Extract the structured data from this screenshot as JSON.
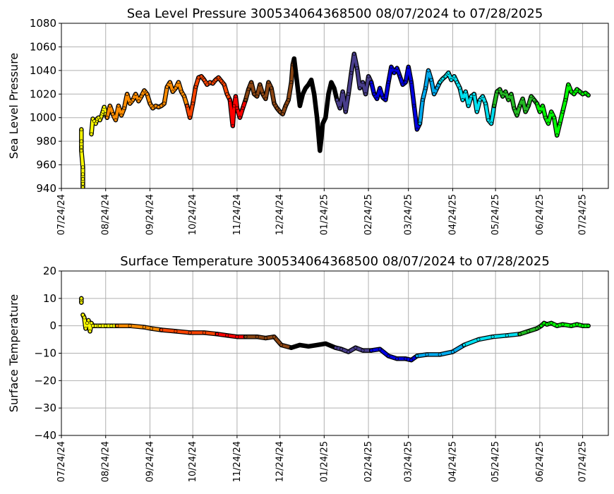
{
  "chart_data": [
    {
      "type": "scatter",
      "title": "Sea Level Pressure 300534064368500  08/07/2024 to 07/28/2025",
      "xlabel": "",
      "ylabel": "Sea Level Pressure",
      "ylim": [
        940,
        1080
      ],
      "yticks": [
        940,
        960,
        980,
        1000,
        1020,
        1040,
        1060,
        1080
      ],
      "xlim": [
        "2024-07-24",
        "2025-08-11"
      ],
      "xticks": [
        "07/24/24",
        "08/24/24",
        "09/24/24",
        "10/24/24",
        "11/24/24",
        "12/24/24",
        "01/24/25",
        "02/24/25",
        "03/24/25",
        "04/24/25",
        "05/24/25",
        "06/24/25",
        "07/24/25"
      ],
      "grid": true,
      "legend": "none",
      "series": [
        {
          "color": "#ffff00",
          "x": [
            "2024-08-07",
            "2024-08-07",
            "2024-08-07",
            "2024-08-07",
            "2024-08-08",
            "2024-08-08",
            "2024-08-08",
            "2024-08-08",
            "2024-08-08"
          ],
          "y": [
            990,
            980,
            975,
            972,
            958,
            952,
            948,
            944,
            941
          ]
        },
        {
          "color": "#ffff00",
          "x": [
            "2024-08-14",
            "2024-08-15",
            "2024-08-16",
            "2024-08-17",
            "2024-08-18",
            "2024-08-19",
            "2024-08-20",
            "2024-08-21",
            "2024-08-22",
            "2024-08-23",
            "2024-08-24",
            "2024-08-25"
          ],
          "y": [
            986,
            999,
            997,
            995,
            999,
            1000,
            998,
            1001,
            1005,
            1009,
            1003,
            1000
          ]
        },
        {
          "color": "#ff8c00",
          "x": [
            "2024-08-25",
            "2024-08-27",
            "2024-08-29",
            "2024-08-31",
            "2024-09-02",
            "2024-09-04",
            "2024-09-06",
            "2024-09-08",
            "2024-09-10",
            "2024-09-12",
            "2024-09-14",
            "2024-09-16",
            "2024-09-18",
            "2024-09-20",
            "2024-09-22",
            "2024-09-24",
            "2024-09-26",
            "2024-09-28",
            "2024-09-30",
            "2024-10-02",
            "2024-10-04",
            "2024-10-06",
            "2024-10-08",
            "2024-10-10",
            "2024-10-12",
            "2024-10-14",
            "2024-10-16",
            "2024-10-18",
            "2024-10-20"
          ],
          "y": [
            1000,
            1010,
            1003,
            998,
            1010,
            1002,
            1008,
            1020,
            1012,
            1015,
            1020,
            1014,
            1018,
            1023,
            1020,
            1012,
            1008,
            1010,
            1009,
            1010,
            1012,
            1026,
            1030,
            1022,
            1025,
            1030,
            1022,
            1018,
            1010
          ]
        },
        {
          "color": "#ff4500",
          "x": [
            "2024-10-20",
            "2024-10-22",
            "2024-10-24",
            "2024-10-26",
            "2024-10-28",
            "2024-10-30",
            "2024-11-01",
            "2024-11-03",
            "2024-11-05",
            "2024-11-07",
            "2024-11-09",
            "2024-11-11",
            "2024-11-13",
            "2024-11-15",
            "2024-11-17",
            "2024-11-19"
          ],
          "y": [
            1010,
            1000,
            1012,
            1026,
            1034,
            1035,
            1032,
            1028,
            1030,
            1029,
            1032,
            1034,
            1031,
            1028,
            1020,
            1015
          ]
        },
        {
          "color": "#ff0000",
          "x": [
            "2024-11-19",
            "2024-11-21",
            "2024-11-22",
            "2024-11-23",
            "2024-11-24",
            "2024-11-26",
            "2024-11-28",
            "2024-11-30"
          ],
          "y": [
            1015,
            993,
            1010,
            1018,
            1008,
            1000,
            1008,
            1015
          ]
        },
        {
          "color": "#8b4513",
          "x": [
            "2024-11-30",
            "2024-12-02",
            "2024-12-04",
            "2024-12-06",
            "2024-12-08",
            "2024-12-10",
            "2024-12-12",
            "2024-12-14",
            "2024-12-16",
            "2024-12-18",
            "2024-12-20",
            "2024-12-22",
            "2024-12-24",
            "2024-12-26",
            "2024-12-28",
            "2024-12-30",
            "2025-01-01",
            "2025-01-02",
            "2025-01-03"
          ],
          "y": [
            1015,
            1024,
            1030,
            1020,
            1018,
            1028,
            1020,
            1016,
            1030,
            1025,
            1012,
            1008,
            1005,
            1003,
            1010,
            1015,
            1030,
            1045,
            1050
          ]
        },
        {
          "color": "#000000",
          "x": [
            "2025-01-03",
            "2025-01-05",
            "2025-01-07",
            "2025-01-09",
            "2025-01-11",
            "2025-01-13",
            "2025-01-15",
            "2025-01-17",
            "2025-01-19",
            "2025-01-21",
            "2025-01-22",
            "2025-01-23",
            "2025-01-25",
            "2025-01-27",
            "2025-01-29",
            "2025-01-31",
            "2025-02-02"
          ],
          "y": [
            1050,
            1030,
            1010,
            1020,
            1025,
            1028,
            1032,
            1020,
            1000,
            972,
            982,
            995,
            1000,
            1020,
            1030,
            1025,
            1015
          ]
        },
        {
          "color": "#483d8b",
          "x": [
            "2025-02-02",
            "2025-02-04",
            "2025-02-06",
            "2025-02-08",
            "2025-02-10",
            "2025-02-12",
            "2025-02-14",
            "2025-02-16",
            "2025-02-18",
            "2025-02-20",
            "2025-02-22",
            "2025-02-24",
            "2025-02-26"
          ],
          "y": [
            1015,
            1008,
            1022,
            1005,
            1020,
            1038,
            1054,
            1042,
            1025,
            1030,
            1020,
            1035,
            1030
          ]
        },
        {
          "color": "#0000e0",
          "x": [
            "2025-02-26",
            "2025-02-28",
            "2025-03-02",
            "2025-03-04",
            "2025-03-06",
            "2025-03-08",
            "2025-03-10",
            "2025-03-12",
            "2025-03-14",
            "2025-03-16",
            "2025-03-18",
            "2025-03-20",
            "2025-03-22",
            "2025-03-24",
            "2025-03-26",
            "2025-03-28",
            "2025-03-30",
            "2025-04-01"
          ],
          "y": [
            1030,
            1020,
            1016,
            1025,
            1017,
            1015,
            1030,
            1043,
            1038,
            1042,
            1035,
            1028,
            1030,
            1043,
            1030,
            1010,
            990,
            995
          ]
        },
        {
          "color": "#00aaee",
          "x": [
            "2025-04-01",
            "2025-04-03",
            "2025-04-05",
            "2025-04-07",
            "2025-04-09",
            "2025-04-11",
            "2025-04-13",
            "2025-04-15"
          ],
          "y": [
            995,
            1015,
            1025,
            1040,
            1032,
            1020,
            1025,
            1030
          ]
        },
        {
          "color": "#00e0f0",
          "x": [
            "2025-04-15",
            "2025-04-17",
            "2025-04-19",
            "2025-04-21",
            "2025-04-23",
            "2025-04-25",
            "2025-04-27",
            "2025-04-29",
            "2025-05-01",
            "2025-05-03",
            "2025-05-05",
            "2025-05-07",
            "2025-05-09",
            "2025-05-11",
            "2025-05-13",
            "2025-05-15",
            "2025-05-17",
            "2025-05-19",
            "2025-05-21",
            "2025-05-23"
          ],
          "y": [
            1030,
            1033,
            1035,
            1038,
            1032,
            1035,
            1030,
            1025,
            1015,
            1022,
            1010,
            1018,
            1020,
            1005,
            1015,
            1018,
            1012,
            998,
            995,
            1010
          ]
        },
        {
          "color": "#22bb22",
          "x": [
            "2025-05-23",
            "2025-05-25",
            "2025-05-27",
            "2025-05-29",
            "2025-05-31",
            "2025-06-02",
            "2025-06-04",
            "2025-06-06",
            "2025-06-08",
            "2025-06-10",
            "2025-06-12",
            "2025-06-14",
            "2025-06-16",
            "2025-06-18",
            "2025-06-20",
            "2025-06-22"
          ],
          "y": [
            1010,
            1022,
            1024,
            1018,
            1022,
            1015,
            1020,
            1008,
            1002,
            1010,
            1016,
            1005,
            1010,
            1018,
            1015,
            1012
          ]
        },
        {
          "color": "#00ff00",
          "x": [
            "2025-06-22",
            "2025-06-24",
            "2025-06-26",
            "2025-06-28",
            "2025-06-30",
            "2025-07-02",
            "2025-07-04",
            "2025-07-06",
            "2025-07-08",
            "2025-07-10",
            "2025-07-12",
            "2025-07-14",
            "2025-07-16",
            "2025-07-18",
            "2025-07-20",
            "2025-07-22",
            "2025-07-24",
            "2025-07-26",
            "2025-07-28"
          ],
          "y": [
            1012,
            1005,
            1010,
            1000,
            995,
            1005,
            1000,
            985,
            995,
            1005,
            1015,
            1028,
            1022,
            1020,
            1024,
            1022,
            1020,
            1021,
            1019
          ]
        }
      ]
    },
    {
      "type": "scatter",
      "title": "Surface Temperature 300534064368500  08/07/2024 to 07/28/2025",
      "xlabel": "",
      "ylabel": "Surface Temperature",
      "ylim": [
        -40,
        20
      ],
      "yticks": [
        -40,
        -30,
        -20,
        -10,
        0,
        10,
        20
      ],
      "xlim": [
        "2024-07-24",
        "2025-08-11"
      ],
      "xticks": [
        "07/24/24",
        "08/24/24",
        "09/24/24",
        "10/24/24",
        "11/24/24",
        "12/24/24",
        "01/24/25",
        "02/24/25",
        "03/24/25",
        "04/24/25",
        "05/24/25",
        "06/24/25",
        "07/24/25"
      ],
      "grid": true,
      "legend": "none",
      "series": [
        {
          "color": "#ffff00",
          "x": [
            "2024-08-07",
            "2024-08-07"
          ],
          "y": [
            10,
            8.5
          ]
        },
        {
          "color": "#ffff00",
          "x": [
            "2024-08-08",
            "2024-08-09",
            "2024-08-10",
            "2024-08-11",
            "2024-08-12",
            "2024-08-13",
            "2024-08-14",
            "2024-08-15",
            "2024-08-17",
            "2024-08-20",
            "2024-08-24",
            "2024-08-28",
            "2024-09-01"
          ],
          "y": [
            4,
            3,
            -1,
            1,
            2,
            -2,
            1,
            0,
            0,
            0,
            0,
            0,
            0
          ]
        },
        {
          "color": "#ff8c00",
          "x": [
            "2024-09-01",
            "2024-09-10",
            "2024-09-20",
            "2024-09-25",
            "2024-10-02"
          ],
          "y": [
            0,
            0,
            -0.5,
            -1,
            -1.5
          ]
        },
        {
          "color": "#ff4500",
          "x": [
            "2024-10-02",
            "2024-10-12",
            "2024-10-22",
            "2024-11-01",
            "2024-11-10"
          ],
          "y": [
            -1.5,
            -2,
            -2.5,
            -2.5,
            -3
          ]
        },
        {
          "color": "#ff0000",
          "x": [
            "2024-11-10",
            "2024-11-17",
            "2024-11-24",
            "2024-11-30"
          ],
          "y": [
            -3,
            -3.5,
            -4,
            -4
          ]
        },
        {
          "color": "#8b4513",
          "x": [
            "2024-11-30",
            "2024-12-08",
            "2024-12-14",
            "2024-12-20",
            "2024-12-25",
            "2025-01-01"
          ],
          "y": [
            -4,
            -4,
            -4.5,
            -4,
            -7,
            -8
          ]
        },
        {
          "color": "#000000",
          "x": [
            "2025-01-01",
            "2025-01-07",
            "2025-01-13",
            "2025-01-19",
            "2025-01-25",
            "2025-02-01"
          ],
          "y": [
            -8,
            -7,
            -7.5,
            -7,
            -6.5,
            -8
          ]
        },
        {
          "color": "#483d8b",
          "x": [
            "2025-02-01",
            "2025-02-05",
            "2025-02-10",
            "2025-02-15",
            "2025-02-20",
            "2025-02-26"
          ],
          "y": [
            -8,
            -8.5,
            -9.5,
            -8,
            -9,
            -9
          ]
        },
        {
          "color": "#0000e0",
          "x": [
            "2025-02-26",
            "2025-03-04",
            "2025-03-10",
            "2025-03-16",
            "2025-03-22",
            "2025-03-26",
            "2025-03-30"
          ],
          "y": [
            -9,
            -8.5,
            -11,
            -12,
            -12,
            -12.5,
            -11
          ]
        },
        {
          "color": "#00aaee",
          "x": [
            "2025-03-30",
            "2025-04-06",
            "2025-04-15",
            "2025-04-24",
            "2025-05-02"
          ],
          "y": [
            -11,
            -10.5,
            -10.5,
            -9.5,
            -7
          ]
        },
        {
          "color": "#00e0f0",
          "x": [
            "2025-05-02",
            "2025-05-12",
            "2025-05-22",
            "2025-06-01",
            "2025-06-10"
          ],
          "y": [
            -7,
            -5,
            -4,
            -3.5,
            -3
          ]
        },
        {
          "color": "#22bb22",
          "x": [
            "2025-06-10",
            "2025-06-16",
            "2025-06-22",
            "2025-06-25"
          ],
          "y": [
            -3,
            -2,
            -1,
            0
          ]
        },
        {
          "color": "#00ff00",
          "x": [
            "2025-06-25",
            "2025-06-27",
            "2025-06-29",
            "2025-07-02",
            "2025-07-06",
            "2025-07-10",
            "2025-07-16",
            "2025-07-20",
            "2025-07-24",
            "2025-07-28"
          ],
          "y": [
            0,
            1,
            0.5,
            1,
            0,
            0.5,
            0,
            0.5,
            0,
            0
          ]
        }
      ]
    }
  ]
}
